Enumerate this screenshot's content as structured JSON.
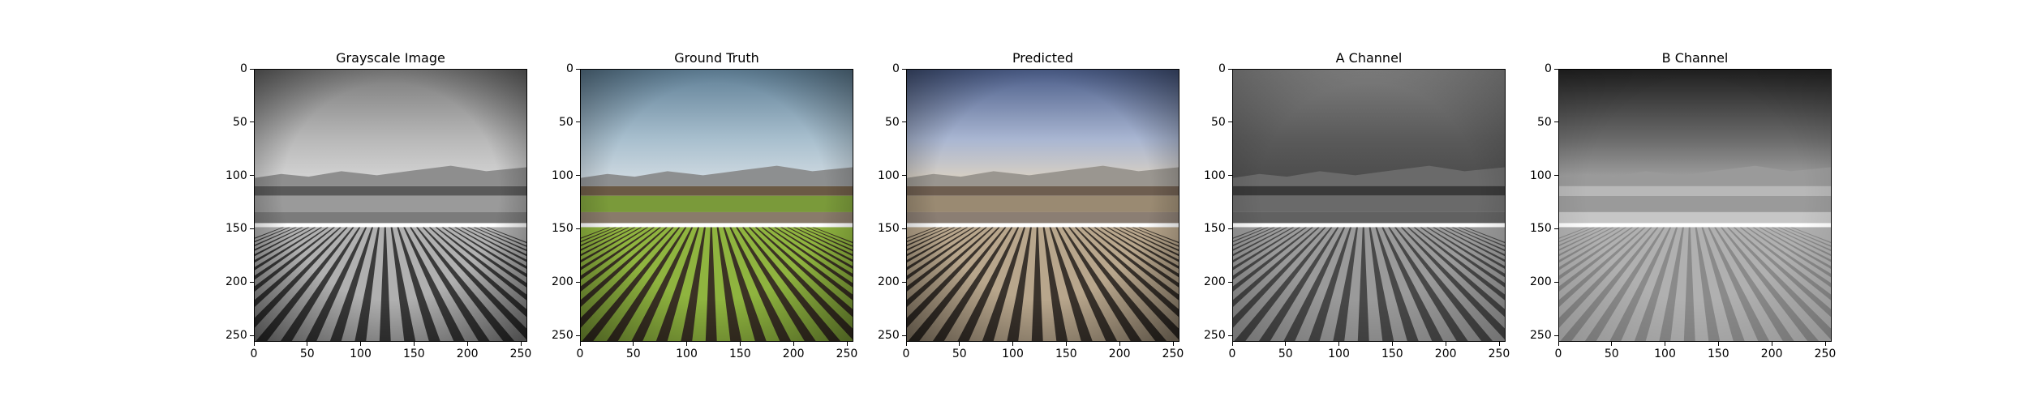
{
  "figure": {
    "panels": [
      {
        "title": "Grayscale Image",
        "kind": "grayscale"
      },
      {
        "title": "Ground Truth",
        "kind": "color"
      },
      {
        "title": "Predicted",
        "kind": "predicted"
      },
      {
        "title": "A Channel",
        "kind": "a_channel"
      },
      {
        "title": "B Channel",
        "kind": "b_channel"
      }
    ],
    "x_ticks": [
      "0",
      "50",
      "100",
      "150",
      "200",
      "250"
    ],
    "y_ticks": [
      "0",
      "50",
      "100",
      "150",
      "200",
      "250"
    ],
    "x_tick_values": [
      0,
      50,
      100,
      150,
      200,
      250
    ],
    "y_tick_values": [
      0,
      50,
      100,
      150,
      200,
      250
    ],
    "image_extent": [
      0,
      256
    ]
  }
}
